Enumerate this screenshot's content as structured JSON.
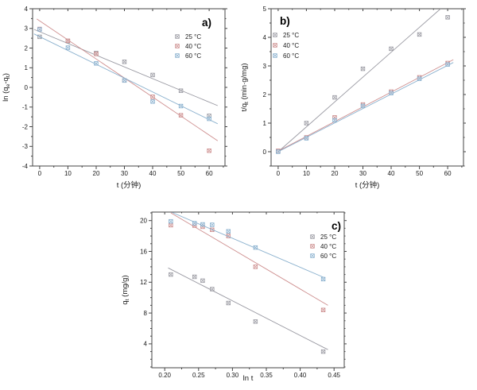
{
  "colors": {
    "background": "#ffffff",
    "axis": "#454545",
    "text": "#1a1a1a"
  },
  "chart_data": [
    {
      "id": "a",
      "type": "scatter",
      "panel_label": "a)",
      "xlabel": "t (分钟)",
      "ylabel": "ln (qe-qt)",
      "xlabel_segments": [
        [
          "n",
          "t (分钟)"
        ]
      ],
      "ylabel_segments": [
        [
          "n",
          "ln (q"
        ],
        [
          "s",
          "e"
        ],
        [
          "n",
          "-q"
        ],
        [
          "s",
          "t"
        ],
        [
          "n",
          ")"
        ]
      ],
      "xlim": [
        -2.5,
        65.6
      ],
      "ylim": [
        -4,
        4
      ],
      "x_ticks": {
        "values": [
          0,
          10,
          20,
          30,
          40,
          50,
          60
        ],
        "labels": [
          "0",
          "10",
          "20",
          "30",
          "40",
          "50",
          "60"
        ],
        "minor_step": 5
      },
      "y_ticks": {
        "values": [
          -4,
          -3,
          -2,
          -1,
          0,
          1,
          2,
          3,
          4
        ],
        "labels": [
          "-4",
          "-3",
          "-2",
          "-1",
          "0",
          "1",
          "2",
          "3",
          "4"
        ],
        "minor_step": 0.5
      },
      "legend_position": "top-right",
      "grid": false,
      "series": [
        {
          "name": "25 °C",
          "marker_color": "#9a9aa2",
          "line_color": "#8e8e98",
          "points": [
            [
              0,
              2.57
            ],
            [
              10,
              2.35
            ],
            [
              20,
              1.75
            ],
            [
              30,
              1.3
            ],
            [
              40,
              0.63
            ],
            [
              50,
              -0.17
            ],
            [
              60,
              -1.45
            ]
          ],
          "fit_line": [
            [
              -2,
              2.95
            ],
            [
              63,
              -0.93
            ]
          ]
        },
        {
          "name": "40 °C",
          "marker_color": "#cb8a8a",
          "line_color": "#c98383",
          "points": [
            [
              0,
              2.97
            ],
            [
              10,
              2.37
            ],
            [
              20,
              1.7
            ],
            [
              30,
              0.35
            ],
            [
              40,
              -0.48
            ],
            [
              50,
              -1.42
            ],
            [
              60,
              -3.22
            ]
          ],
          "fit_line": [
            [
              -1,
              3.48
            ],
            [
              63,
              -2.72
            ]
          ]
        },
        {
          "name": "60 °C",
          "marker_color": "#86aecd",
          "line_color": "#7ea9c9",
          "points": [
            [
              0,
              2.95
            ],
            [
              10,
              2.02
            ],
            [
              20,
              1.22
            ],
            [
              30,
              0.35
            ],
            [
              40,
              -0.72
            ],
            [
              50,
              -0.95
            ],
            [
              60,
              -1.6
            ]
          ],
          "fit_line": [
            [
              -2,
              2.72
            ],
            [
              63,
              -1.85
            ]
          ]
        }
      ]
    },
    {
      "id": "b",
      "type": "scatter",
      "panel_label": "b)",
      "xlabel": "t (分钟)",
      "ylabel": "t/qt (min·g/mg)",
      "xlabel_segments": [
        [
          "n",
          "t (分钟)"
        ]
      ],
      "ylabel_segments": [
        [
          "n",
          "t/q"
        ],
        [
          "s",
          "t"
        ],
        [
          "n",
          " (min·g/mg)"
        ]
      ],
      "xlim": [
        -2.5,
        65.6
      ],
      "ylim": [
        -0.5,
        5
      ],
      "x_ticks": {
        "values": [
          0,
          10,
          20,
          30,
          40,
          50,
          60
        ],
        "labels": [
          "0",
          "10",
          "20",
          "30",
          "40",
          "50",
          "60"
        ],
        "minor_step": 5
      },
      "y_ticks": {
        "values": [
          0,
          1,
          2,
          3,
          4,
          5
        ],
        "labels": [
          "0",
          "1",
          "2",
          "3",
          "4",
          "5"
        ],
        "minor_step": 0.5
      },
      "legend_position": "top-left",
      "grid": false,
      "series": [
        {
          "name": "25 °C",
          "marker_color": "#9a9aa2",
          "line_color": "#8e8e98",
          "points": [
            [
              0,
              0.02
            ],
            [
              10,
              1.0
            ],
            [
              20,
              1.9
            ],
            [
              30,
              2.9
            ],
            [
              40,
              3.6
            ],
            [
              50,
              4.1
            ],
            [
              60,
              4.7
            ]
          ],
          "fit_line": [
            [
              0,
              0
            ],
            [
              57.5,
              5
            ]
          ]
        },
        {
          "name": "40 °C",
          "marker_color": "#cb8a8a",
          "line_color": "#c98383",
          "points": [
            [
              0,
              0.03
            ],
            [
              10,
              0.5
            ],
            [
              20,
              1.2
            ],
            [
              30,
              1.65
            ],
            [
              40,
              2.1
            ],
            [
              50,
              2.6
            ],
            [
              60,
              3.1
            ]
          ],
          "fit_line": [
            [
              0,
              0.02
            ],
            [
              62,
              3.22
            ]
          ]
        },
        {
          "name": "60 °C",
          "marker_color": "#86aecd",
          "line_color": "#7ea9c9",
          "points": [
            [
              0,
              0.0
            ],
            [
              10,
              0.47
            ],
            [
              20,
              1.1
            ],
            [
              30,
              1.6
            ],
            [
              40,
              2.05
            ],
            [
              50,
              2.55
            ],
            [
              60,
              3.05
            ]
          ],
          "fit_line": [
            [
              0,
              0
            ],
            [
              62,
              3.12
            ]
          ]
        }
      ]
    },
    {
      "id": "c",
      "type": "scatter",
      "panel_label": "c)",
      "xlabel": "ln t",
      "ylabel": "qt (mg/g)",
      "xlabel_segments": [
        [
          "n",
          "ln t"
        ]
      ],
      "ylabel_segments": [
        [
          "n",
          "q"
        ],
        [
          "s",
          "t"
        ],
        [
          "n",
          " (mg/g)"
        ]
      ],
      "xlim": [
        0.181,
        0.465
      ],
      "ylim": [
        0.9,
        21.1
      ],
      "x_ticks": {
        "values": [
          0.2,
          0.25,
          0.3,
          0.35,
          0.4,
          0.45
        ],
        "labels": [
          "0.20",
          "0.25",
          "0.30",
          "0.35",
          "0.40",
          "0.45"
        ],
        "minor_step": 0.025
      },
      "y_ticks": {
        "values": [
          4,
          8,
          12,
          16,
          20
        ],
        "labels": [
          "4",
          "8",
          "12",
          "16",
          "20"
        ],
        "minor_step": 1
      },
      "legend_position": "top-right",
      "grid": false,
      "series": [
        {
          "name": "25 °C",
          "marker_color": "#9a9aa2",
          "line_color": "#8e8e98",
          "points": [
            [
              0.209,
              13.0
            ],
            [
              0.244,
              12.7
            ],
            [
              0.256,
              12.2
            ],
            [
              0.27,
              11.1
            ],
            [
              0.294,
              9.3
            ],
            [
              0.334,
              6.9
            ],
            [
              0.434,
              3.0
            ]
          ],
          "fit_line": [
            [
              0.205,
              13.85
            ],
            [
              0.441,
              3.25
            ]
          ]
        },
        {
          "name": "40 °C",
          "marker_color": "#cb8a8a",
          "line_color": "#c98383",
          "points": [
            [
              0.209,
              19.4
            ],
            [
              0.244,
              19.35
            ],
            [
              0.256,
              19.2
            ],
            [
              0.27,
              18.8
            ],
            [
              0.294,
              18.0
            ],
            [
              0.334,
              14.0
            ],
            [
              0.434,
              8.4
            ]
          ],
          "fit_line": [
            [
              0.209,
              21.0
            ],
            [
              0.441,
              9.0
            ]
          ]
        },
        {
          "name": "60 °C",
          "marker_color": "#86aecd",
          "line_color": "#7ea9c9",
          "points": [
            [
              0.209,
              19.9
            ],
            [
              0.244,
              19.65
            ],
            [
              0.256,
              19.5
            ],
            [
              0.27,
              19.45
            ],
            [
              0.294,
              18.6
            ],
            [
              0.334,
              16.5
            ],
            [
              0.434,
              12.4
            ]
          ],
          "fit_line": [
            [
              0.211,
              21.05
            ],
            [
              0.437,
              12.55
            ]
          ]
        }
      ]
    }
  ]
}
